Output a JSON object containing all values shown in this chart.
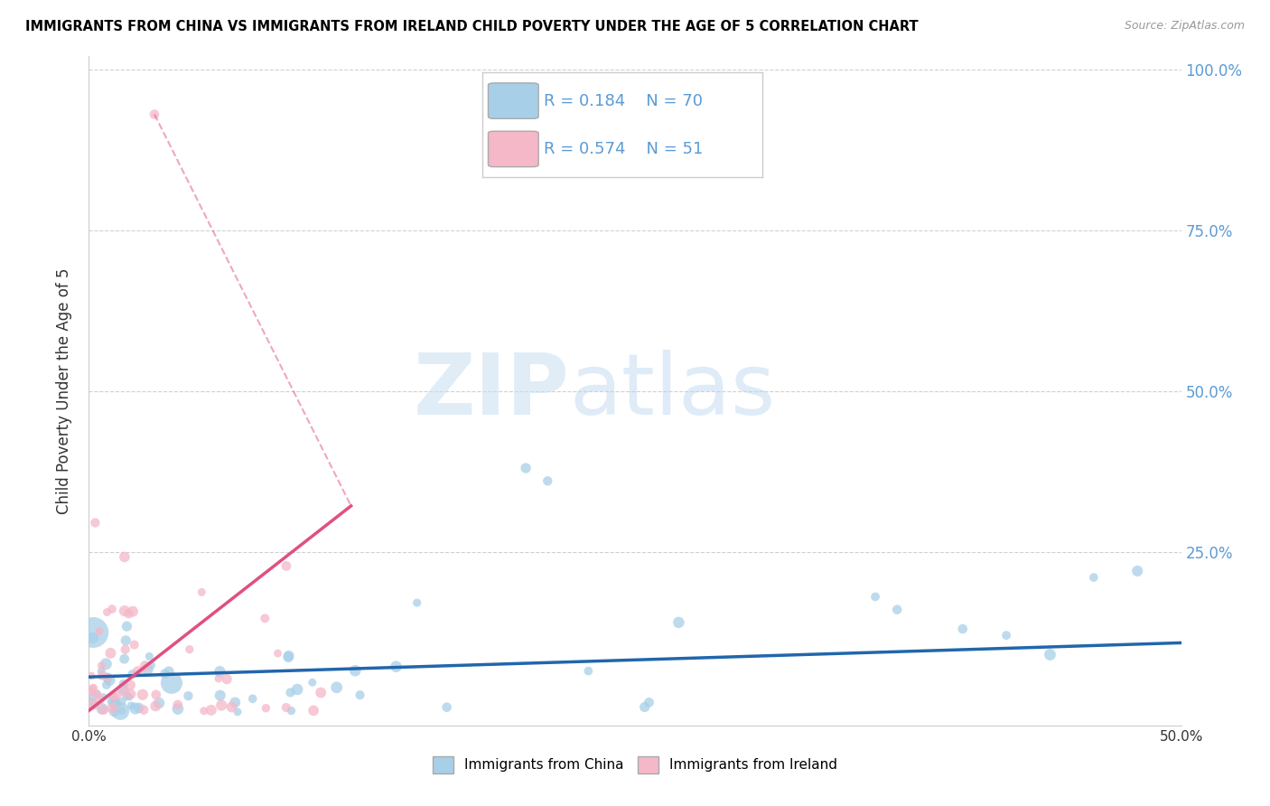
{
  "title": "IMMIGRANTS FROM CHINA VS IMMIGRANTS FROM IRELAND CHILD POVERTY UNDER THE AGE OF 5 CORRELATION CHART",
  "source": "Source: ZipAtlas.com",
  "ylabel": "Child Poverty Under the Age of 5",
  "watermark_zip": "ZIP",
  "watermark_atlas": "atlas",
  "china_R": 0.184,
  "china_N": 70,
  "ireland_R": 0.574,
  "ireland_N": 51,
  "china_color": "#a8cfe8",
  "ireland_color": "#f4b8c8",
  "china_line_color": "#2166ac",
  "ireland_line_color": "#e05080",
  "xlim": [
    0.0,
    0.5
  ],
  "ylim": [
    -0.02,
    1.02
  ],
  "ytick_positions": [
    0.0,
    0.25,
    0.5,
    0.75,
    1.0
  ],
  "ytick_labels": [
    "",
    "25.0%",
    "50.0%",
    "75.0%",
    "100.0%"
  ],
  "xtick_positions": [
    0.0,
    0.1,
    0.2,
    0.3,
    0.4,
    0.5
  ],
  "xtick_labels": [
    "0.0%",
    "",
    "",
    "",
    "",
    "50.0%"
  ],
  "legend_china_label": "Immigrants from China",
  "legend_ireland_label": "Immigrants from Ireland",
  "bg_color": "#ffffff",
  "grid_color": "#d0d0d0"
}
